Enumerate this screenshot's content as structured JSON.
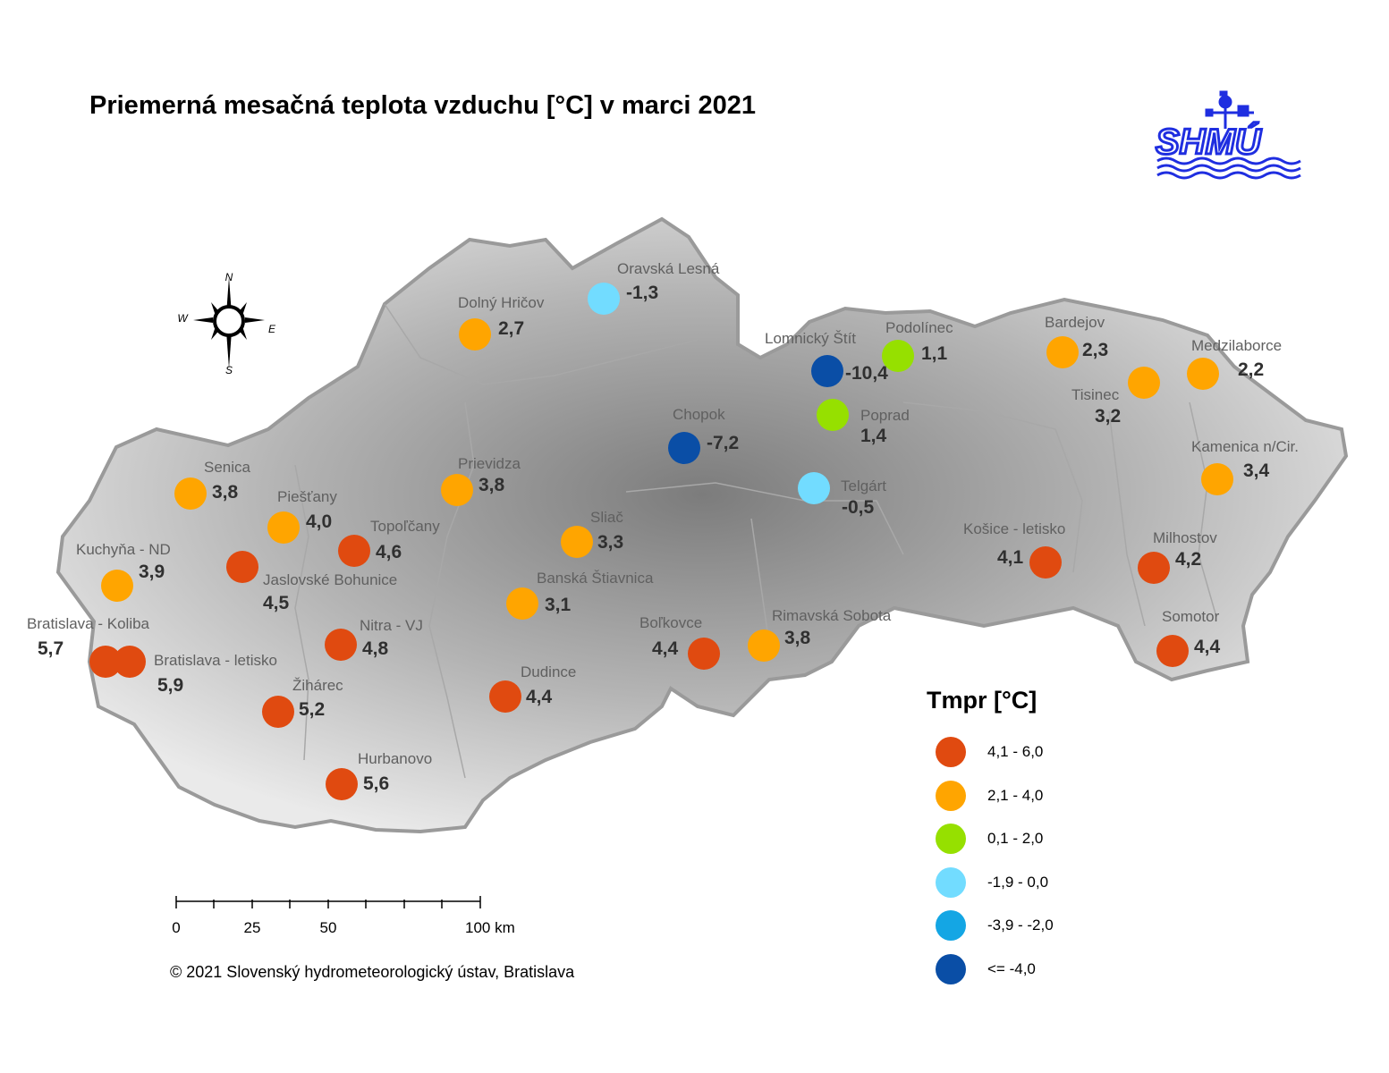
{
  "title": "Priemerná mesačná teplota vzduchu [°C] v marci 2021",
  "logo_text": "SHMÚ",
  "compass": {
    "n": "N",
    "s": "S",
    "e": "E",
    "w": "W"
  },
  "colors": {
    "c1": "#e04a10",
    "c2": "#ffa500",
    "c3": "#96e000",
    "c4": "#72dcff",
    "c5": "#14a6e4",
    "c6": "#0a4ea6",
    "label_gray": "#606060",
    "value_dark": "#303030",
    "logo_blue": "#1f2ee0"
  },
  "legend": {
    "title": "Tmpr [°C]",
    "items": [
      {
        "label": "4,1 - 6,0",
        "color": "#e04a10"
      },
      {
        "label": "2,1 - 4,0",
        "color": "#ffa500"
      },
      {
        "label": "0,1 - 2,0",
        "color": "#96e000"
      },
      {
        "label": "-1,9 - 0,0",
        "color": "#72dcff"
      },
      {
        "label": "-3,9 - -2,0",
        "color": "#14a6e4"
      },
      {
        "label": "<= -4,0",
        "color": "#0a4ea6"
      }
    ]
  },
  "stations": [
    {
      "name": "Oravská Lesná",
      "value": "-1,3",
      "class": "c4"
    },
    {
      "name": "Dolný Hričov",
      "value": "2,7",
      "class": "c2"
    },
    {
      "name": "Lomnický Štít",
      "value": "-10,4",
      "class": "c6"
    },
    {
      "name": "Podolínec",
      "value": "1,1",
      "class": "c3"
    },
    {
      "name": "Bardejov",
      "value": "2,3",
      "class": "c2"
    },
    {
      "name": "Medzilaborce",
      "value": "2,2",
      "class": "c2"
    },
    {
      "name": "Tisinec",
      "value": "3,2",
      "class": "c2"
    },
    {
      "name": "Poprad",
      "value": "1,4",
      "class": "c3"
    },
    {
      "name": "Chopok",
      "value": "-7,2",
      "class": "c6"
    },
    {
      "name": "Kamenica n/Cir.",
      "value": "3,4",
      "class": "c2"
    },
    {
      "name": "Senica",
      "value": "3,8",
      "class": "c2"
    },
    {
      "name": "Prievidza",
      "value": "3,8",
      "class": "c2"
    },
    {
      "name": "Telgárt",
      "value": "-0,5",
      "class": "c4"
    },
    {
      "name": "Piešťany",
      "value": "4,0",
      "class": "c2"
    },
    {
      "name": "Topoľčany",
      "value": "4,6",
      "class": "c1"
    },
    {
      "name": "Sliač",
      "value": "3,3",
      "class": "c2"
    },
    {
      "name": "Košice - letisko",
      "value": "4,1",
      "class": "c1"
    },
    {
      "name": "Milhostov",
      "value": "4,2",
      "class": "c1"
    },
    {
      "name": "Kuchyňa - ND",
      "value": "3,9",
      "class": "c2"
    },
    {
      "name": "Jaslovské Bohunice",
      "value": "4,5",
      "class": "c1"
    },
    {
      "name": "Banská Štiavnica",
      "value": "3,1",
      "class": "c2"
    },
    {
      "name": "Bratislava - Koliba",
      "value": "5,7",
      "class": "c1"
    },
    {
      "name": "Nitra - VJ",
      "value": "4,8",
      "class": "c1"
    },
    {
      "name": "Boľkovce",
      "value": "4,4",
      "class": "c1"
    },
    {
      "name": "Rimavská Sobota",
      "value": "3,8",
      "class": "c2"
    },
    {
      "name": "Somotor",
      "value": "4,4",
      "class": "c1"
    },
    {
      "name": "Bratislava - letisko",
      "value": "5,9",
      "class": "c1"
    },
    {
      "name": "Žihárec",
      "value": "5,2",
      "class": "c1"
    },
    {
      "name": "Dudince",
      "value": "4,4",
      "class": "c1"
    },
    {
      "name": "Hurbanovo",
      "value": "5,6",
      "class": "c1"
    }
  ],
  "scale": {
    "ticks": [
      "0",
      "25",
      "50",
      "100 km"
    ]
  },
  "copyright": "© 2021 Slovenský hydrometeorologický ústav, Bratislava"
}
